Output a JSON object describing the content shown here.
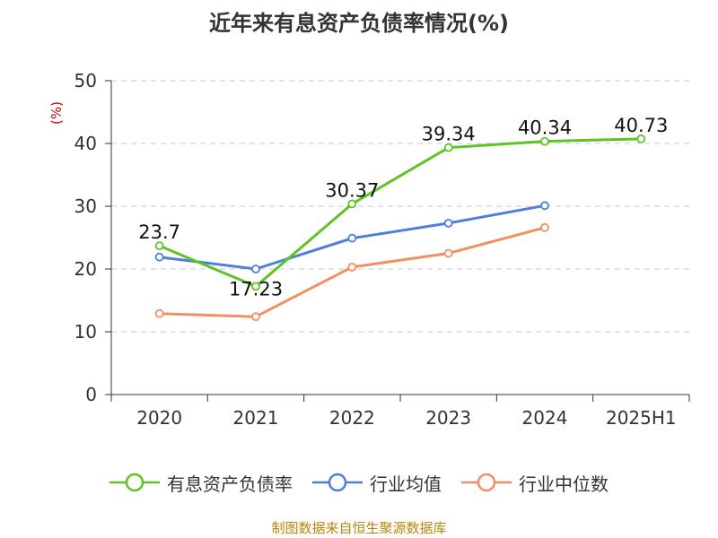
{
  "chart_data": {
    "type": "line",
    "title": "近年来有息资产负债率情况(%)",
    "ylabel": "(%)",
    "ylim": [
      0,
      50
    ],
    "yticks": [
      "0",
      "10",
      "20",
      "30",
      "40",
      "50"
    ],
    "categories": [
      "2020",
      "2021",
      "2022",
      "2023",
      "2024",
      "2025H1"
    ],
    "grid": true,
    "legend_position": "bottom",
    "series": [
      {
        "name": "有息资产负债率",
        "color": "#5ec424",
        "values": [
          23.7,
          17.23,
          30.37,
          39.34,
          40.34,
          40.73
        ],
        "labels": [
          "23.7",
          "17.23",
          "30.37",
          "39.34",
          "40.34",
          "40.73"
        ]
      },
      {
        "name": "行业均值",
        "color": "#4f7fdb",
        "values": [
          21.9,
          20.0,
          24.9,
          27.3,
          30.1,
          null
        ]
      },
      {
        "name": "行业中位数",
        "color": "#f39063",
        "values": [
          12.9,
          12.4,
          20.3,
          22.5,
          26.6,
          null
        ]
      }
    ]
  },
  "source": "制图数据来自恒生聚源数据库"
}
